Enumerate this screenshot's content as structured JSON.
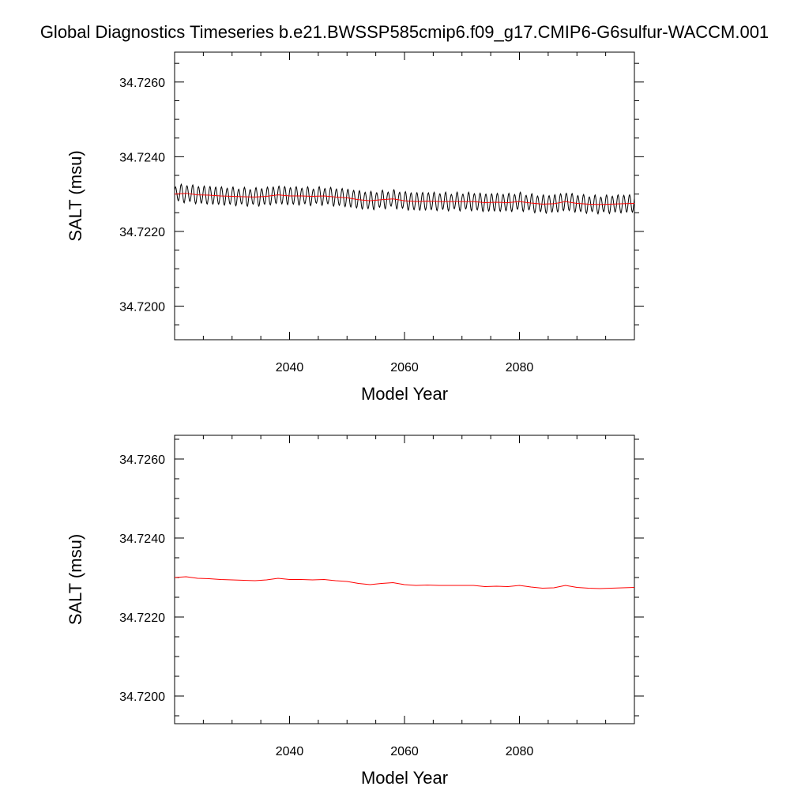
{
  "title": "Global Diagnostics Timeseries b.e21.BWSSP585cmip6.f09_g17.CMIP6-G6sulfur-WACCM.001",
  "colors": {
    "monthly": "#000000",
    "annual": "#ff0000",
    "axes": "#000000"
  },
  "chart_data": [
    {
      "type": "line",
      "xlabel": "Model Year",
      "ylabel": "SALT (msu)",
      "xlim": [
        2020,
        2100
      ],
      "ylim": [
        34.7191,
        34.7268
      ],
      "xticks": [
        2040,
        2060,
        2080
      ],
      "xtick_labels": [
        "2040",
        "2060",
        "2080"
      ],
      "yticks": [
        34.72,
        34.722,
        34.724,
        34.726
      ],
      "ytick_labels": [
        "34.7200",
        "34.7220",
        "34.7240",
        "34.7260"
      ],
      "series": [
        {
          "style": "monthly-oscillating",
          "color": "#000000",
          "annual_x": [
            2020,
            2022,
            2024,
            2026,
            2028,
            2030,
            2032,
            2034,
            2036,
            2038,
            2040,
            2042,
            2044,
            2046,
            2048,
            2050,
            2052,
            2054,
            2056,
            2058,
            2060,
            2062,
            2064,
            2066,
            2068,
            2070,
            2072,
            2074,
            2076,
            2078,
            2080,
            2082,
            2084,
            2086,
            2088,
            2090,
            2092,
            2094,
            2096,
            2098,
            2100
          ],
          "annual_y": [
            34.723,
            34.72302,
            34.72298,
            34.72297,
            34.72295,
            34.72294,
            34.72293,
            34.72292,
            34.72294,
            34.72298,
            34.72295,
            34.72295,
            34.72294,
            34.72295,
            34.72292,
            34.7229,
            34.72285,
            34.72282,
            34.72285,
            34.72287,
            34.72282,
            34.7228,
            34.72281,
            34.7228,
            34.7228,
            34.7228,
            34.7228,
            34.72277,
            34.72278,
            34.72277,
            34.7228,
            34.72276,
            34.72273,
            34.72274,
            34.7228,
            34.72275,
            34.72273,
            34.72272,
            34.72273,
            34.72274,
            34.72275
          ],
          "seasonal_amplitude": 0.00022
        },
        {
          "style": "annual-mean",
          "color": "#ff0000",
          "x": [
            2020,
            2022,
            2024,
            2026,
            2028,
            2030,
            2032,
            2034,
            2036,
            2038,
            2040,
            2042,
            2044,
            2046,
            2048,
            2050,
            2052,
            2054,
            2056,
            2058,
            2060,
            2062,
            2064,
            2066,
            2068,
            2070,
            2072,
            2074,
            2076,
            2078,
            2080,
            2082,
            2084,
            2086,
            2088,
            2090,
            2092,
            2094,
            2096,
            2098,
            2100
          ],
          "y": [
            34.723,
            34.72302,
            34.72298,
            34.72297,
            34.72295,
            34.72294,
            34.72293,
            34.72292,
            34.72294,
            34.72298,
            34.72295,
            34.72295,
            34.72294,
            34.72295,
            34.72292,
            34.7229,
            34.72285,
            34.72282,
            34.72285,
            34.72287,
            34.72282,
            34.7228,
            34.72281,
            34.7228,
            34.7228,
            34.7228,
            34.7228,
            34.72277,
            34.72278,
            34.72277,
            34.7228,
            34.72276,
            34.72273,
            34.72274,
            34.7228,
            34.72275,
            34.72273,
            34.72272,
            34.72273,
            34.72274,
            34.72275
          ]
        }
      ]
    },
    {
      "type": "line",
      "xlabel": "Model Year",
      "ylabel": "SALT (msu)",
      "xlim": [
        2020,
        2100
      ],
      "ylim": [
        34.7193,
        34.7266
      ],
      "xticks": [
        2040,
        2060,
        2080
      ],
      "xtick_labels": [
        "2040",
        "2060",
        "2080"
      ],
      "yticks": [
        34.72,
        34.722,
        34.724,
        34.726
      ],
      "ytick_labels": [
        "34.7200",
        "34.7220",
        "34.7240",
        "34.7260"
      ],
      "series": [
        {
          "style": "annual-mean",
          "color": "#ff0000",
          "x": [
            2020,
            2022,
            2024,
            2026,
            2028,
            2030,
            2032,
            2034,
            2036,
            2038,
            2040,
            2042,
            2044,
            2046,
            2048,
            2050,
            2052,
            2054,
            2056,
            2058,
            2060,
            2062,
            2064,
            2066,
            2068,
            2070,
            2072,
            2074,
            2076,
            2078,
            2080,
            2082,
            2084,
            2086,
            2088,
            2090,
            2092,
            2094,
            2096,
            2098,
            2100
          ],
          "y": [
            34.723,
            34.72302,
            34.72298,
            34.72297,
            34.72295,
            34.72294,
            34.72293,
            34.72292,
            34.72294,
            34.72298,
            34.72295,
            34.72295,
            34.72294,
            34.72295,
            34.72292,
            34.7229,
            34.72285,
            34.72282,
            34.72285,
            34.72287,
            34.72282,
            34.7228,
            34.72281,
            34.7228,
            34.7228,
            34.7228,
            34.7228,
            34.72277,
            34.72278,
            34.72277,
            34.7228,
            34.72276,
            34.72273,
            34.72274,
            34.7228,
            34.72275,
            34.72273,
            34.72272,
            34.72273,
            34.72274,
            34.72275
          ]
        }
      ]
    }
  ]
}
